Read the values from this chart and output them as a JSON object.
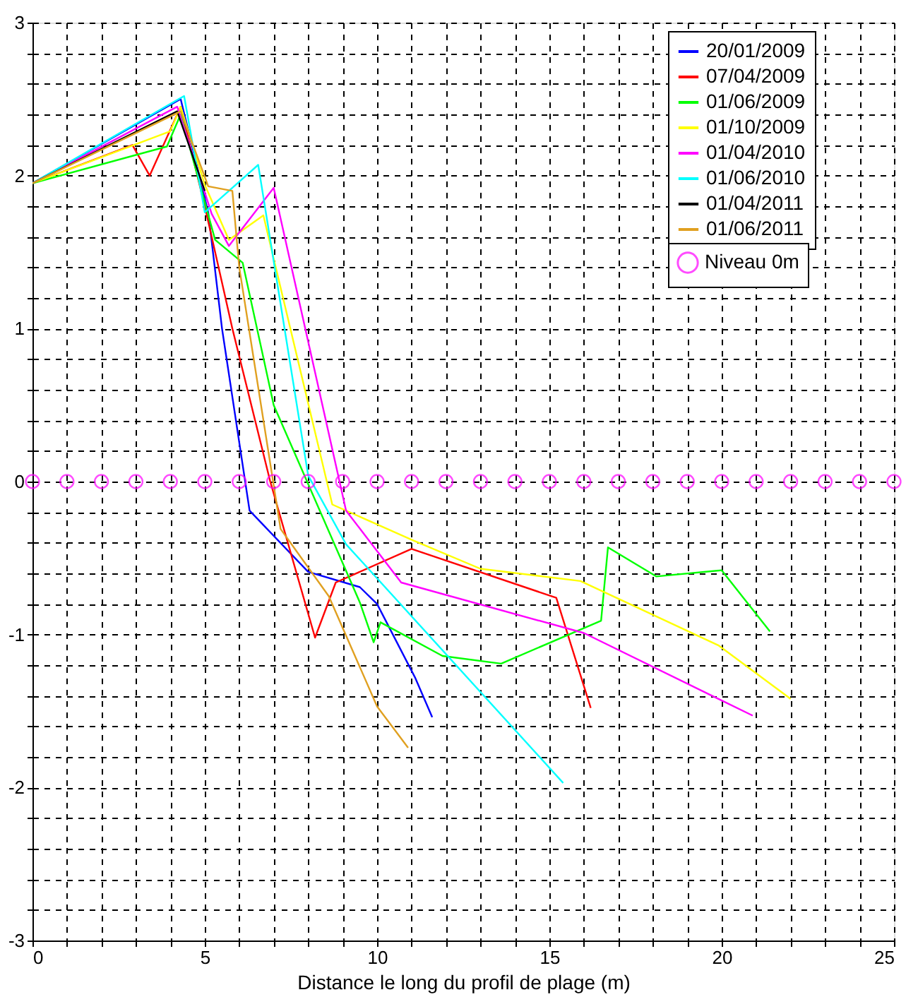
{
  "chart_data": {
    "type": "line",
    "xlabel": "Distance le long du profil de plage (m)",
    "xlim": [
      0,
      25
    ],
    "ylim": [
      -3,
      3
    ],
    "xticks": [
      0,
      {
        "value": 1,
        "label": null
      },
      {
        "value": 2,
        "label": null
      },
      {
        "value": 3,
        "label": null
      },
      {
        "value": 4,
        "label": null
      },
      5,
      {
        "value": 6,
        "label": null
      },
      {
        "value": 7,
        "label": null
      },
      {
        "value": 8,
        "label": null
      },
      {
        "value": 9,
        "label": null
      },
      10,
      {
        "value": 11,
        "label": null
      },
      {
        "value": 12,
        "label": null
      },
      {
        "value": 13,
        "label": null
      },
      {
        "value": 14,
        "label": null
      },
      15,
      {
        "value": 16,
        "label": null
      },
      {
        "value": 17,
        "label": null
      },
      {
        "value": 18,
        "label": null
      },
      {
        "value": 19,
        "label": null
      },
      20,
      {
        "value": 21,
        "label": null
      },
      {
        "value": 22,
        "label": null
      },
      {
        "value": 23,
        "label": null
      },
      {
        "value": 24,
        "label": null
      },
      25
    ],
    "yticks": [
      -3,
      {
        "value": -2.8,
        "label": null
      },
      {
        "value": -2.6,
        "label": null
      },
      {
        "value": -2.4,
        "label": null
      },
      {
        "value": -2.2,
        "label": null
      },
      -2,
      {
        "value": -1.8,
        "label": null
      },
      {
        "value": -1.6,
        "label": null
      },
      {
        "value": -1.4,
        "label": null
      },
      {
        "value": -1.2,
        "label": null
      },
      -1,
      {
        "value": -0.8,
        "label": null
      },
      {
        "value": -0.6,
        "label": null
      },
      {
        "value": -0.4,
        "label": null
      },
      {
        "value": -0.2,
        "label": null
      },
      0,
      {
        "value": 0.2,
        "label": null
      },
      {
        "value": 0.4,
        "label": null
      },
      {
        "value": 0.6,
        "label": null
      },
      {
        "value": 0.8,
        "label": null
      },
      1,
      {
        "value": 1.2,
        "label": null
      },
      {
        "value": 1.4,
        "label": null
      },
      {
        "value": 1.6,
        "label": null
      },
      {
        "value": 1.8,
        "label": null
      },
      2,
      {
        "value": 2.2,
        "label": null
      },
      {
        "value": 2.4,
        "label": null
      },
      {
        "value": 2.6,
        "label": null
      },
      {
        "value": 2.8,
        "label": null
      },
      3
    ],
    "grid": true,
    "legend": "top right",
    "line_style": "solid",
    "series": [
      {
        "name": "20/01/2009",
        "color": "#0000ff",
        "x": [
          0,
          4.3,
          5.1,
          5.5,
          6.3,
          8.0,
          9.5,
          10.0,
          11.1,
          11.6
        ],
        "values": [
          1.95,
          2.5,
          1.76,
          1.0,
          -0.19,
          -0.59,
          -0.69,
          -0.8,
          -1.28,
          -1.54
        ]
      },
      {
        "name": "07/04/2009",
        "color": "#ff0000",
        "x": [
          0,
          2.9,
          3.4,
          4.3,
          5.0,
          5.8,
          6.9,
          8.2,
          8.8,
          11.0,
          15.2,
          16.2
        ],
        "values": [
          1.95,
          2.2,
          2.0,
          2.45,
          1.8,
          1.0,
          0,
          -1.02,
          -0.66,
          -0.44,
          -0.76,
          -1.48
        ]
      },
      {
        "name": "01/06/2009",
        "color": "#00ff00",
        "x": [
          0,
          3.9,
          4.3,
          5.3,
          6.1,
          7.0,
          9.5,
          9.9,
          10.1,
          11.9,
          13.6,
          16.5,
          16.7,
          18.1,
          20.0,
          21.4
        ],
        "values": [
          1.95,
          2.19,
          2.4,
          1.58,
          1.43,
          0.5,
          -0.79,
          -1.05,
          -0.92,
          -1.14,
          -1.19,
          -0.91,
          -0.43,
          -0.62,
          -0.58,
          -0.98
        ]
      },
      {
        "name": "01/10/2009",
        "color": "#ffff00",
        "x": [
          0,
          4.0,
          4.3,
          5.0,
          5.7,
          6.7,
          8.7,
          11.0,
          13.0,
          15.9,
          19.9,
          22.0
        ],
        "values": [
          1.95,
          2.29,
          2.45,
          1.94,
          1.58,
          1.74,
          -0.15,
          -0.38,
          -0.57,
          -0.65,
          -1.07,
          -1.42
        ]
      },
      {
        "name": "01/04/2010",
        "color": "#ff00ff",
        "x": [
          0,
          4.2,
          5.2,
          5.7,
          7.0,
          9.1,
          10.7,
          16.0,
          20.9
        ],
        "values": [
          1.95,
          2.45,
          1.75,
          1.54,
          1.92,
          -0.19,
          -0.66,
          -0.99,
          -1.53
        ]
      },
      {
        "name": "01/06/2010",
        "color": "#00ffff",
        "x": [
          0,
          4.4,
          5.0,
          6.55,
          8.0,
          9.1,
          15.4
        ],
        "values": [
          1.95,
          2.52,
          1.76,
          2.07,
          0.04,
          -0.41,
          -1.97
        ]
      },
      {
        "name": "01/04/2011",
        "color": "#000000",
        "x": [
          0,
          4.2,
          5.0
        ],
        "values": [
          1.95,
          2.42,
          1.9
        ]
      },
      {
        "name": "01/06/2011",
        "color": "#e0a020",
        "x": [
          0,
          4.3,
          5.1,
          5.8,
          6.0,
          7.2,
          8.6,
          10.0,
          10.9
        ],
        "values": [
          1.95,
          2.42,
          1.93,
          1.9,
          1.4,
          -0.31,
          -0.75,
          -1.47,
          -1.74
        ]
      },
      {
        "name": "Niveau 0m",
        "type": "scatter",
        "marker": "circle",
        "color": "#ff00ff",
        "x": [
          0,
          1,
          2,
          3,
          4,
          5,
          6,
          7,
          8,
          9,
          10,
          11,
          12,
          13,
          14,
          15,
          16,
          17,
          18,
          19,
          20,
          21,
          22,
          23,
          24,
          25
        ],
        "values": [
          0,
          0,
          0,
          0,
          0,
          0,
          0,
          0,
          0,
          0,
          0,
          0,
          0,
          0,
          0,
          0,
          0,
          0,
          0,
          0,
          0,
          0,
          0,
          0,
          0,
          0
        ]
      }
    ]
  }
}
